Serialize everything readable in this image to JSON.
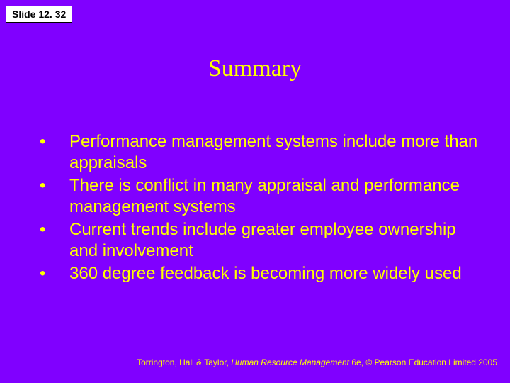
{
  "slide": {
    "number_label": "Slide 12. 32",
    "title": "Summary",
    "background_color": "#8000ff",
    "text_color": "#ffff00",
    "title_fontsize": 34,
    "body_fontsize": 24,
    "footer_fontsize": 12,
    "bullets": [
      "Performance management systems include more than appraisals",
      "There is conflict in many appraisal and performance management systems",
      "Current trends include greater employee ownership and involvement",
      "360 degree feedback is becoming more widely used"
    ],
    "footer": {
      "prefix": "Torrington, Hall & Taylor, ",
      "italic": "Human Resource Management ",
      "suffix": "6e, © Pearson Education Limited 2005"
    }
  }
}
